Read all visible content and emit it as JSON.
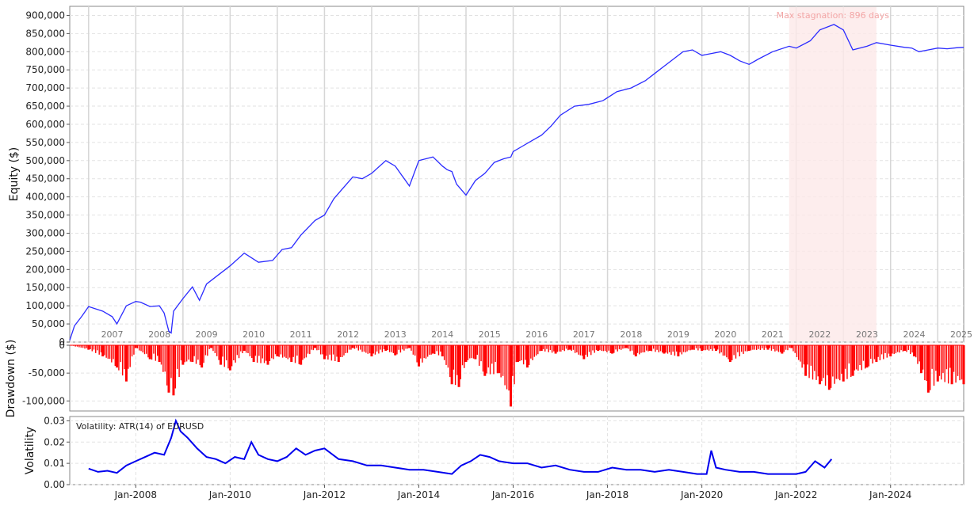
{
  "chart_data": [
    {
      "type": "line",
      "ylabel": "Equity ($)",
      "ylim": [
        0,
        925000
      ],
      "yticks": [
        0,
        50000,
        100000,
        150000,
        200000,
        250000,
        300000,
        350000,
        400000,
        450000,
        500000,
        550000,
        600000,
        650000,
        700000,
        750000,
        800000,
        850000,
        900000
      ],
      "ytick_labels": [
        "0",
        "50,000",
        "100,000",
        "150,000",
        "200,000",
        "250,000",
        "300,000",
        "350,000",
        "400,000",
        "450,000",
        "500,000",
        "550,000",
        "600,000",
        "650,000",
        "700,000",
        "750,000",
        "800,000",
        "850,000",
        "900,000"
      ],
      "year_labels": [
        "2007",
        "2008",
        "2009",
        "2010",
        "2011",
        "2012",
        "2013",
        "2014",
        "2015",
        "2016",
        "2017",
        "2018",
        "2019",
        "2020",
        "2021",
        "2022",
        "2023",
        "2024",
        "2025"
      ],
      "series_color": "#2b2bff",
      "grid": true,
      "stagnation": {
        "start": 2021.85,
        "end": 2023.7,
        "label": "Max stagnation: 896 days",
        "color": "#fde8e8"
      },
      "x": [
        2006.6,
        2006.7,
        2006.85,
        2007.0,
        2007.3,
        2007.5,
        2007.6,
        2007.8,
        2008.0,
        2008.1,
        2008.3,
        2008.5,
        2008.6,
        2008.7,
        2008.75,
        2008.8,
        2009.0,
        2009.2,
        2009.35,
        2009.5,
        2009.75,
        2010.0,
        2010.3,
        2010.6,
        2010.9,
        2011.1,
        2011.3,
        2011.5,
        2011.8,
        2012.0,
        2012.2,
        2012.4,
        2012.6,
        2012.8,
        2013.0,
        2013.3,
        2013.5,
        2013.8,
        2014.0,
        2014.3,
        2014.5,
        2014.6,
        2014.7,
        2014.8,
        2015.0,
        2015.2,
        2015.4,
        2015.6,
        2015.8,
        2015.95,
        2016.0,
        2016.2,
        2016.4,
        2016.6,
        2016.8,
        2017.0,
        2017.3,
        2017.6,
        2017.9,
        2018.2,
        2018.5,
        2018.8,
        2019.0,
        2019.2,
        2019.4,
        2019.6,
        2019.8,
        2020.0,
        2020.2,
        2020.4,
        2020.6,
        2020.8,
        2021.0,
        2021.2,
        2021.5,
        2021.85,
        2022.0,
        2022.3,
        2022.5,
        2022.8,
        2023.0,
        2023.2,
        2023.5,
        2023.7,
        2024.0,
        2024.3,
        2024.45,
        2024.6,
        2024.8,
        2025.0,
        2025.2,
        2025.4,
        2025.55
      ],
      "values": [
        5000,
        45000,
        70000,
        98000,
        85000,
        70000,
        50000,
        100000,
        112000,
        110000,
        98000,
        100000,
        80000,
        30000,
        25000,
        85000,
        120000,
        152000,
        115000,
        160000,
        185000,
        210000,
        245000,
        220000,
        225000,
        255000,
        260000,
        295000,
        335000,
        350000,
        395000,
        425000,
        455000,
        450000,
        465000,
        500000,
        485000,
        430000,
        500000,
        510000,
        485000,
        475000,
        470000,
        435000,
        405000,
        445000,
        465000,
        495000,
        505000,
        510000,
        525000,
        540000,
        555000,
        570000,
        595000,
        625000,
        650000,
        655000,
        665000,
        690000,
        700000,
        720000,
        740000,
        760000,
        780000,
        800000,
        805000,
        790000,
        795000,
        800000,
        790000,
        775000,
        765000,
        780000,
        800000,
        815000,
        810000,
        830000,
        860000,
        875000,
        860000,
        805000,
        815000,
        825000,
        818000,
        812000,
        810000,
        800000,
        805000,
        810000,
        808000,
        811000,
        812000
      ]
    },
    {
      "type": "bar",
      "ylabel": "Drawdown ($)",
      "ylim": [
        -118000,
        0
      ],
      "yticks": [
        0,
        -50000,
        -100000
      ],
      "ytick_labels": [
        "0",
        "-50,000",
        "-100,000"
      ],
      "series_color": "#ff0000",
      "grid": true,
      "x": [
        2006.6,
        2007.0,
        2007.3,
        2007.6,
        2007.8,
        2008.0,
        2008.3,
        2008.5,
        2008.7,
        2008.8,
        2009.0,
        2009.2,
        2009.4,
        2009.6,
        2009.8,
        2010.0,
        2010.3,
        2010.5,
        2010.8,
        2011.0,
        2011.3,
        2011.5,
        2011.8,
        2012.0,
        2012.3,
        2012.6,
        2013.0,
        2013.3,
        2013.5,
        2013.8,
        2014.0,
        2014.3,
        2014.5,
        2014.7,
        2014.85,
        2015.0,
        2015.2,
        2015.4,
        2015.7,
        2015.95,
        2016.1,
        2016.3,
        2016.6,
        2016.9,
        2017.2,
        2017.5,
        2017.8,
        2018.1,
        2018.4,
        2018.6,
        2018.9,
        2019.2,
        2019.5,
        2019.8,
        2020.0,
        2020.3,
        2020.6,
        2021.0,
        2021.4,
        2021.7,
        2021.9,
        2022.2,
        2022.5,
        2022.7,
        2023.0,
        2023.2,
        2023.5,
        2023.7,
        2024.0,
        2024.3,
        2024.5,
        2024.65,
        2024.8,
        2025.0,
        2025.3,
        2025.55
      ],
      "values": [
        0,
        -8000,
        -20000,
        -40000,
        -65000,
        -5000,
        -25000,
        -30000,
        -85000,
        -90000,
        -35000,
        -30000,
        -40000,
        -5000,
        -35000,
        -45000,
        -10000,
        -30000,
        -35000,
        -20000,
        -30000,
        -35000,
        -5000,
        -25000,
        -30000,
        -5000,
        -20000,
        -10000,
        -18000,
        -5000,
        -38000,
        -15000,
        -20000,
        -70000,
        -75000,
        -30000,
        -25000,
        -55000,
        -50000,
        -110000,
        -30000,
        -40000,
        -10000,
        -15000,
        -8000,
        -25000,
        -10000,
        -15000,
        -5000,
        -20000,
        -10000,
        -15000,
        -20000,
        -8000,
        -10000,
        -10000,
        -30000,
        -10000,
        -8000,
        -15000,
        -5000,
        -55000,
        -70000,
        -80000,
        -65000,
        -55000,
        -40000,
        -30000,
        -20000,
        -10000,
        -20000,
        -50000,
        -85000,
        -65000,
        -70000,
        -70000
      ]
    },
    {
      "type": "line",
      "ylabel": "Volatility",
      "ylim": [
        0,
        0.032
      ],
      "yticks": [
        0,
        0.01,
        0.02,
        0.03
      ],
      "ytick_labels": [
        "0.00",
        "0.01",
        "0.02",
        "0.03"
      ],
      "legend_label": "Volatility: ATR(14) of EURUSD",
      "series_color": "#0000ee",
      "grid": true,
      "xtick_labels": [
        "Jan-2008",
        "Jan-2010",
        "Jan-2012",
        "Jan-2014",
        "Jan-2016",
        "Jan-2018",
        "Jan-2020",
        "Jan-2022",
        "Jan-2024"
      ],
      "xtick_years": [
        2008,
        2010,
        2012,
        2014,
        2016,
        2018,
        2020,
        2022,
        2024
      ],
      "x": [
        2007.0,
        2007.2,
        2007.4,
        2007.6,
        2007.8,
        2008.0,
        2008.2,
        2008.4,
        2008.6,
        2008.75,
        2008.85,
        2008.95,
        2009.1,
        2009.3,
        2009.5,
        2009.7,
        2009.9,
        2010.1,
        2010.3,
        2010.45,
        2010.6,
        2010.8,
        2011.0,
        2011.2,
        2011.4,
        2011.6,
        2011.8,
        2012.0,
        2012.3,
        2012.6,
        2012.9,
        2013.2,
        2013.5,
        2013.8,
        2014.1,
        2014.4,
        2014.7,
        2014.9,
        2015.1,
        2015.3,
        2015.5,
        2015.7,
        2016.0,
        2016.3,
        2016.6,
        2016.9,
        2017.2,
        2017.5,
        2017.8,
        2018.1,
        2018.4,
        2018.7,
        2019.0,
        2019.3,
        2019.6,
        2019.9,
        2020.1,
        2020.2,
        2020.3,
        2020.5,
        2020.8,
        2021.1,
        2021.4,
        2021.7,
        2022.0,
        2022.2,
        2022.4,
        2022.6,
        2022.75
      ],
      "values": [
        0.0075,
        0.006,
        0.0065,
        0.0055,
        0.009,
        0.011,
        0.013,
        0.015,
        0.014,
        0.022,
        0.03,
        0.025,
        0.022,
        0.017,
        0.013,
        0.012,
        0.01,
        0.013,
        0.012,
        0.02,
        0.014,
        0.012,
        0.011,
        0.013,
        0.017,
        0.014,
        0.016,
        0.017,
        0.012,
        0.011,
        0.009,
        0.009,
        0.008,
        0.007,
        0.007,
        0.006,
        0.005,
        0.009,
        0.011,
        0.014,
        0.013,
        0.011,
        0.01,
        0.01,
        0.008,
        0.009,
        0.007,
        0.006,
        0.006,
        0.008,
        0.007,
        0.007,
        0.006,
        0.007,
        0.006,
        0.005,
        0.005,
        0.016,
        0.008,
        0.007,
        0.006,
        0.006,
        0.005,
        0.005,
        0.005,
        0.006,
        0.011,
        0.008,
        0.012
      ]
    }
  ]
}
